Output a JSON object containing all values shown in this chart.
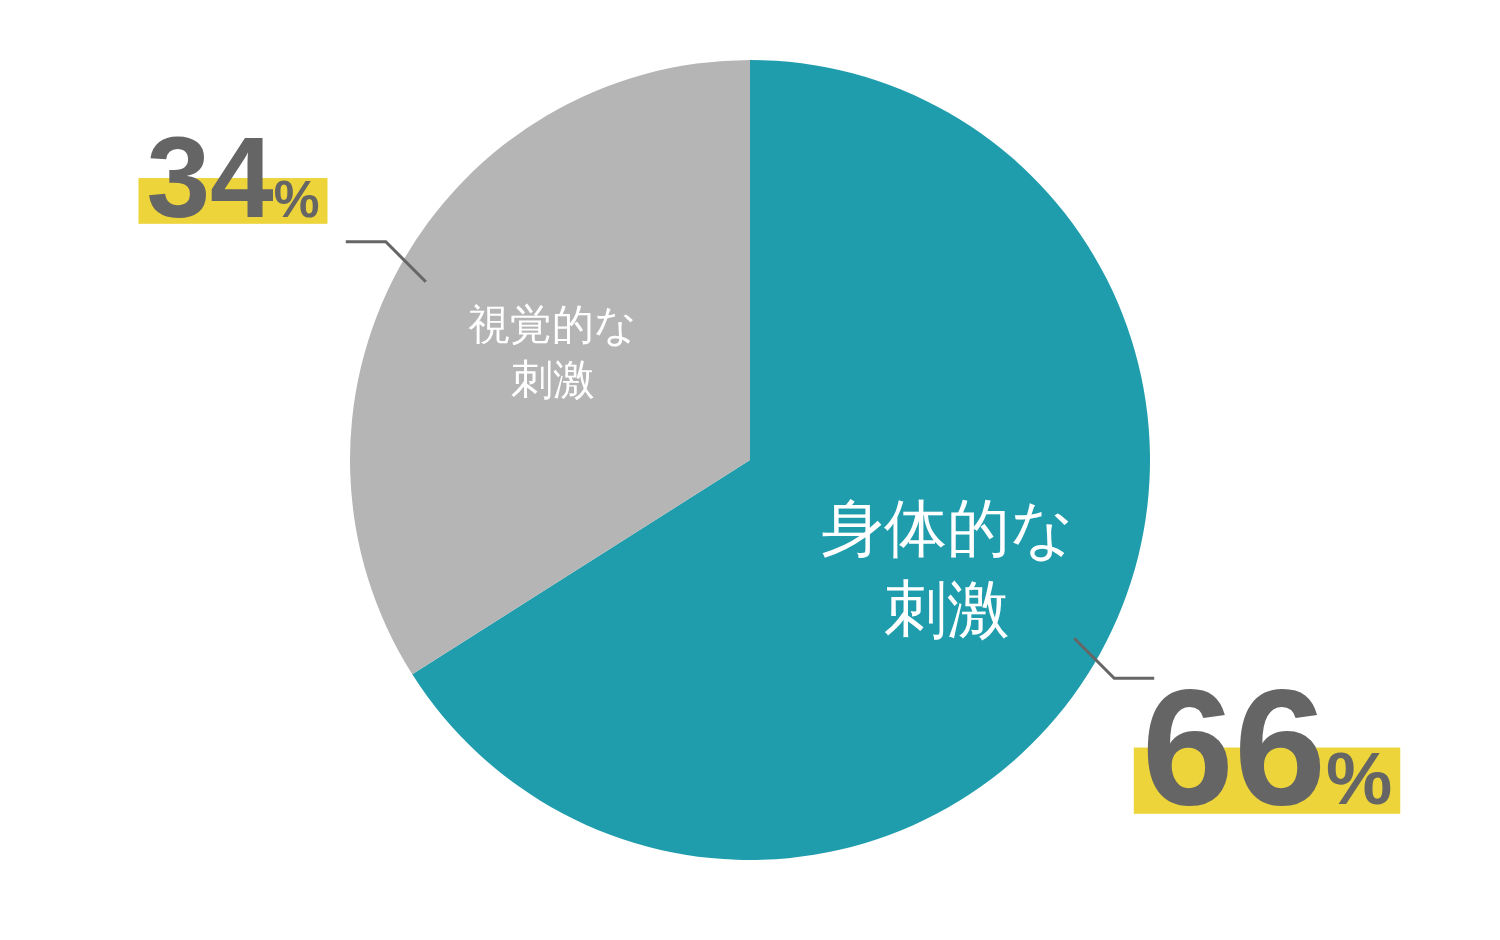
{
  "chart_data": {
    "type": "pie",
    "categories": [
      "身体的な刺激",
      "視覚的な刺激"
    ],
    "values": [
      66,
      34
    ],
    "colors": [
      "#1f9dac",
      "#b5b5b5"
    ],
    "value_labels": [
      "66%",
      "34%"
    ]
  }
}
